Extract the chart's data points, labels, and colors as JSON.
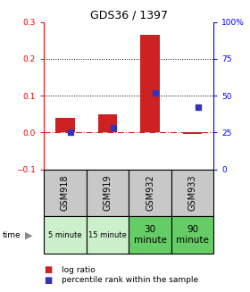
{
  "title": "GDS36 / 1397",
  "samples": [
    "GSM918",
    "GSM919",
    "GSM932",
    "GSM933"
  ],
  "time_labels": [
    "5 minute",
    "15 minute",
    "30\nminute",
    "90\nminute"
  ],
  "log_ratio": [
    0.04,
    0.05,
    0.265,
    -0.005
  ],
  "percentile_vals": [
    25,
    28,
    52,
    42
  ],
  "ylim_left": [
    -0.1,
    0.3
  ],
  "ylim_right": [
    0,
    100
  ],
  "yticks_left": [
    -0.1,
    0.0,
    0.1,
    0.2,
    0.3
  ],
  "yticks_right": [
    0,
    25,
    50,
    75,
    100
  ],
  "bar_color": "#cc2222",
  "dot_color": "#3333bb",
  "bg_color": "#ffffff",
  "zero_line_color": "#cc2222",
  "gsm_bg": "#c8c8c8",
  "time_bg_light": "#ccf0cc",
  "time_bg_dark": "#66cc66",
  "legend_label_ratio": "log ratio",
  "legend_label_pct": "percentile rank within the sample"
}
